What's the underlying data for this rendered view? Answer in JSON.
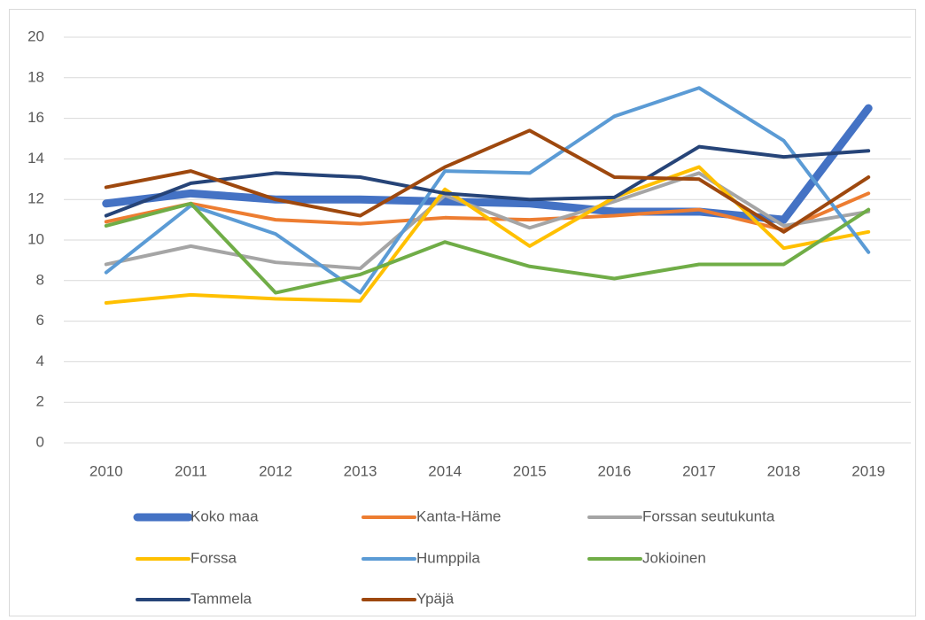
{
  "chart_data": {
    "type": "line",
    "categories": [
      "2010",
      "2011",
      "2012",
      "2013",
      "2014",
      "2015",
      "2016",
      "2017",
      "2018",
      "2019"
    ],
    "series": [
      {
        "name": "Koko maa",
        "color": "#4472c4",
        "line_width": 9,
        "values": [
          11.8,
          12.3,
          12.0,
          12.0,
          11.9,
          11.8,
          11.4,
          11.4,
          11.0,
          16.5
        ]
      },
      {
        "name": "Kanta-Häme",
        "color": "#ed7d31",
        "line_width": 4,
        "values": [
          10.9,
          11.8,
          11.0,
          10.8,
          11.1,
          11.0,
          11.2,
          11.5,
          10.5,
          12.3
        ]
      },
      {
        "name": "Forssan seutukunta",
        "color": "#a5a5a5",
        "line_width": 4,
        "values": [
          8.8,
          9.7,
          8.9,
          8.6,
          12.2,
          10.6,
          11.9,
          13.3,
          10.7,
          11.4
        ]
      },
      {
        "name": "Forssa",
        "color": "#ffc000",
        "line_width": 4,
        "values": [
          6.9,
          7.3,
          7.1,
          7.0,
          12.5,
          9.7,
          12.1,
          13.6,
          9.6,
          10.4
        ]
      },
      {
        "name": "Humppila",
        "color": "#5b9bd5",
        "line_width": 4,
        "values": [
          8.4,
          11.7,
          10.3,
          7.4,
          13.4,
          13.3,
          16.1,
          17.5,
          14.9,
          9.4
        ]
      },
      {
        "name": "Jokioinen",
        "color": "#70ad47",
        "line_width": 4,
        "values": [
          10.7,
          11.8,
          7.4,
          8.3,
          9.9,
          8.7,
          8.1,
          8.8,
          8.8,
          11.5
        ]
      },
      {
        "name": "Tammela",
        "color": "#264478",
        "line_width": 4,
        "values": [
          11.2,
          12.8,
          13.3,
          13.1,
          12.3,
          12.0,
          12.1,
          14.6,
          14.1,
          14.4
        ]
      },
      {
        "name": "Ypäjä",
        "color": "#9e480e",
        "line_width": 4,
        "values": [
          12.6,
          13.4,
          12.0,
          11.2,
          13.6,
          15.4,
          13.1,
          13.0,
          10.4,
          13.1
        ]
      }
    ],
    "ylim": [
      0,
      20
    ],
    "yticks": [
      0,
      2,
      4,
      6,
      8,
      10,
      12,
      14,
      16,
      18,
      20
    ],
    "grid": true,
    "legend": "bottom"
  }
}
